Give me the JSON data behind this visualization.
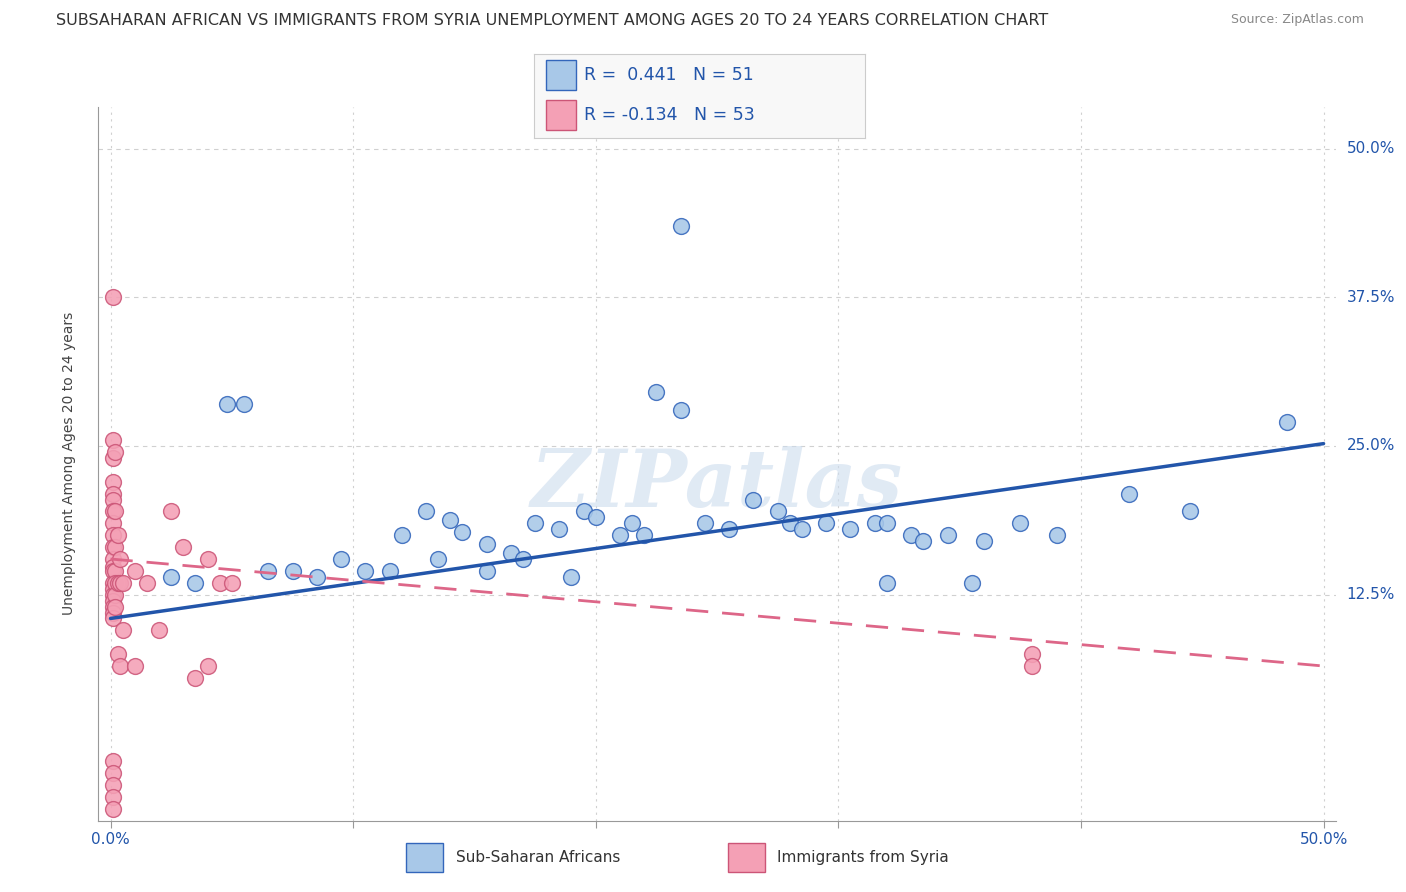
{
  "title": "SUBSAHARAN AFRICAN VS IMMIGRANTS FROM SYRIA UNEMPLOYMENT AMONG AGES 20 TO 24 YEARS CORRELATION CHART",
  "source": "Source: ZipAtlas.com",
  "ylabel": "Unemployment Among Ages 20 to 24 years",
  "xlim": [
    -0.005,
    0.505
  ],
  "ylim": [
    -0.065,
    0.535
  ],
  "ytick_labels": [
    "12.5%",
    "25.0%",
    "37.5%",
    "50.0%"
  ],
  "ytick_values": [
    0.125,
    0.25,
    0.375,
    0.5
  ],
  "grid_color": "#d0d0d0",
  "background_color": "#ffffff",
  "watermark_text": "ZIPatlas",
  "blue_fill": "#a8c8e8",
  "blue_edge": "#3366bb",
  "pink_fill": "#f4a0b5",
  "pink_edge": "#cc5577",
  "blue_line_color": "#2255aa",
  "pink_line_color": "#dd6688",
  "label1": "Sub-Saharan Africans",
  "label2": "Immigrants from Syria",
  "blue_trend_x": [
    0.0,
    0.5
  ],
  "blue_trend_y": [
    0.105,
    0.252
  ],
  "pink_trend_x": [
    0.0,
    0.5
  ],
  "pink_trend_y": [
    0.155,
    0.065
  ],
  "title_fontsize": 11.5,
  "axis_label_fontsize": 10,
  "tick_fontsize": 11,
  "legend_fontsize": 13,
  "blue_x": [
    0.235,
    0.048,
    0.055,
    0.095,
    0.12,
    0.13,
    0.14,
    0.145,
    0.155,
    0.165,
    0.175,
    0.185,
    0.195,
    0.2,
    0.21,
    0.215,
    0.22,
    0.225,
    0.235,
    0.245,
    0.255,
    0.265,
    0.275,
    0.28,
    0.285,
    0.295,
    0.305,
    0.315,
    0.32,
    0.33,
    0.335,
    0.345,
    0.36,
    0.375,
    0.39,
    0.42,
    0.445,
    0.485,
    0.025,
    0.035,
    0.065,
    0.075,
    0.085,
    0.105,
    0.115,
    0.135,
    0.155,
    0.17,
    0.19,
    0.32,
    0.355
  ],
  "blue_y": [
    0.435,
    0.285,
    0.285,
    0.155,
    0.175,
    0.195,
    0.188,
    0.178,
    0.168,
    0.16,
    0.185,
    0.18,
    0.195,
    0.19,
    0.175,
    0.185,
    0.175,
    0.295,
    0.28,
    0.185,
    0.18,
    0.205,
    0.195,
    0.185,
    0.18,
    0.185,
    0.18,
    0.185,
    0.185,
    0.175,
    0.17,
    0.175,
    0.17,
    0.185,
    0.175,
    0.21,
    0.195,
    0.27,
    0.14,
    0.135,
    0.145,
    0.145,
    0.14,
    0.145,
    0.145,
    0.155,
    0.145,
    0.155,
    0.14,
    0.135,
    0.135
  ],
  "pink_x": [
    0.001,
    0.001,
    0.001,
    0.001,
    0.001,
    0.001,
    0.001,
    0.001,
    0.001,
    0.001,
    0.001,
    0.001,
    0.001,
    0.001,
    0.001,
    0.001,
    0.001,
    0.001,
    0.001,
    0.001,
    0.002,
    0.002,
    0.002,
    0.002,
    0.002,
    0.002,
    0.002,
    0.003,
    0.003,
    0.003,
    0.004,
    0.004,
    0.004,
    0.005,
    0.005,
    0.01,
    0.01,
    0.015,
    0.02,
    0.025,
    0.03,
    0.035,
    0.04,
    0.04,
    0.045,
    0.05,
    0.001,
    0.001,
    0.001,
    0.001,
    0.001,
    0.38,
    0.38
  ],
  "pink_y": [
    0.375,
    0.255,
    0.24,
    0.22,
    0.21,
    0.205,
    0.195,
    0.185,
    0.175,
    0.165,
    0.155,
    0.148,
    0.145,
    0.135,
    0.13,
    0.125,
    0.12,
    0.115,
    0.11,
    0.105,
    0.245,
    0.195,
    0.165,
    0.145,
    0.135,
    0.125,
    0.115,
    0.175,
    0.135,
    0.075,
    0.155,
    0.135,
    0.065,
    0.135,
    0.095,
    0.145,
    0.065,
    0.135,
    0.095,
    0.195,
    0.165,
    0.055,
    0.155,
    0.065,
    0.135,
    0.135,
    -0.015,
    -0.025,
    -0.035,
    -0.045,
    -0.055,
    0.075,
    0.065
  ]
}
